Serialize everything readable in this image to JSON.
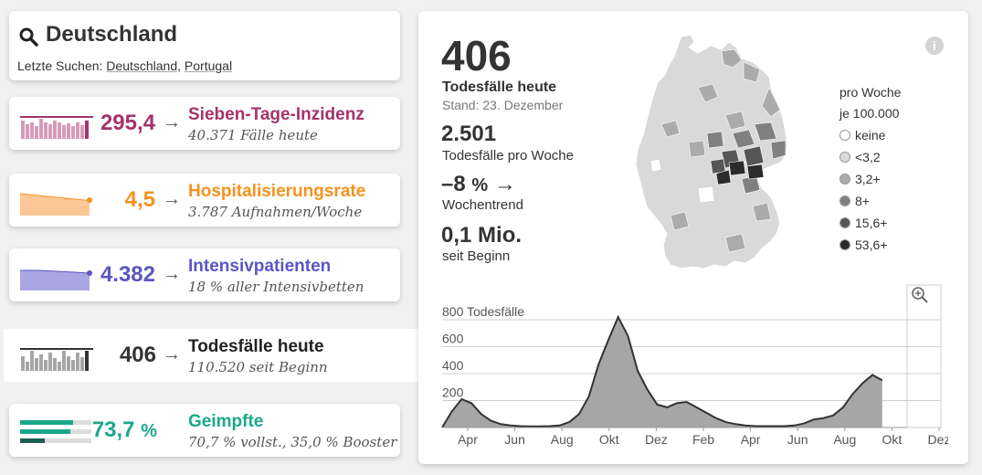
{
  "search": {
    "title": "Deutschland",
    "recent_prefix": "Letzte Suchen:",
    "recent": [
      "Deutschland",
      "Portugal"
    ]
  },
  "metrics": [
    {
      "value": "295,4",
      "title": "Sieben-Tage-Inzidenz",
      "sub": "40.371 Fälle heute",
      "color": "#a3336b",
      "arrow": "→"
    },
    {
      "value": "4,5",
      "title": "Hospitalisierungsrate",
      "sub": "3.787 Aufnahmen/Woche",
      "color": "#f7911e",
      "arrow": "→"
    },
    {
      "value": "4.382",
      "title": "Intensivpatienten",
      "sub": "18 % aller Intensivbetten",
      "color": "#5b55c4",
      "arrow": "→"
    },
    {
      "value": "406",
      "title": "Todesfälle heute",
      "sub": "110.520 seit Beginn",
      "color": "#333333",
      "arrow": "→"
    },
    {
      "value": "73,7",
      "pct_glyph": "%",
      "title": "Geimpfte",
      "sub": "70,7 % vollst., 35,0 % Booster",
      "color": "#1aa88a"
    }
  ],
  "detail": {
    "big_value": "406",
    "big_label": "Todesfälle heute",
    "stand": "Stand: 23. Dezember",
    "week_value": "2.501",
    "week_label": "Todesfälle pro Woche",
    "trend_value": "–8",
    "trend_pct": "%",
    "trend_arrow": "→",
    "trend_label": "Wochentrend",
    "total_value": "0,1 Mio.",
    "total_label": "seit Beginn",
    "info_icon": "i"
  },
  "legend": {
    "title_line1": "pro Woche",
    "title_line2": "je 100.000",
    "items": [
      {
        "label": "keine",
        "color": "#ffffff"
      },
      {
        "label": "<3,2",
        "color": "#d9d9d9"
      },
      {
        "label": "3,2+",
        "color": "#ababab"
      },
      {
        "label": "8+",
        "color": "#808080"
      },
      {
        "label": "15,6+",
        "color": "#565656"
      },
      {
        "label": "53,6+",
        "color": "#2b2b2b"
      }
    ]
  },
  "icons": {
    "search": "search-icon",
    "zoom": "zoom-in-icon",
    "info": "info-icon"
  },
  "chart_data": {
    "type": "area",
    "ylabel": "Todesfälle",
    "yticks": [
      200,
      400,
      600,
      800
    ],
    "ylim": [
      0,
      800
    ],
    "xticks": [
      "Apr",
      "Jun",
      "Aug",
      "Okt",
      "Dez",
      "Feb",
      "Apr",
      "Jun",
      "Aug",
      "Okt",
      "Dez"
    ],
    "x": [
      0,
      0.5,
      1,
      1.5,
      2,
      2.5,
      3,
      3.5,
      4,
      4.5,
      5,
      5.5,
      6,
      6.5,
      7,
      7.5,
      8,
      8.5,
      9,
      9.5,
      10,
      10.5,
      11,
      11.5,
      12,
      12.5,
      13,
      13.5,
      14,
      14.5,
      15,
      15.5,
      16,
      16.5,
      17,
      17.5,
      18,
      18.5,
      19,
      19.5,
      20,
      20.5,
      21,
      21.5,
      22,
      22.5,
      23,
      23.5,
      24,
      24.5,
      25,
      25.5
    ],
    "values": [
      0,
      120,
      210,
      180,
      100,
      50,
      25,
      15,
      10,
      8,
      8,
      10,
      15,
      40,
      100,
      230,
      470,
      650,
      820,
      680,
      420,
      280,
      170,
      150,
      180,
      190,
      150,
      110,
      70,
      40,
      25,
      15,
      10,
      10,
      10,
      10,
      15,
      30,
      60,
      70,
      90,
      150,
      250,
      330,
      390,
      350,
      0,
      0,
      0,
      0,
      0,
      0
    ],
    "note_series": "Todesfälle",
    "fill": "#a6a6a6",
    "line": "#333333"
  }
}
